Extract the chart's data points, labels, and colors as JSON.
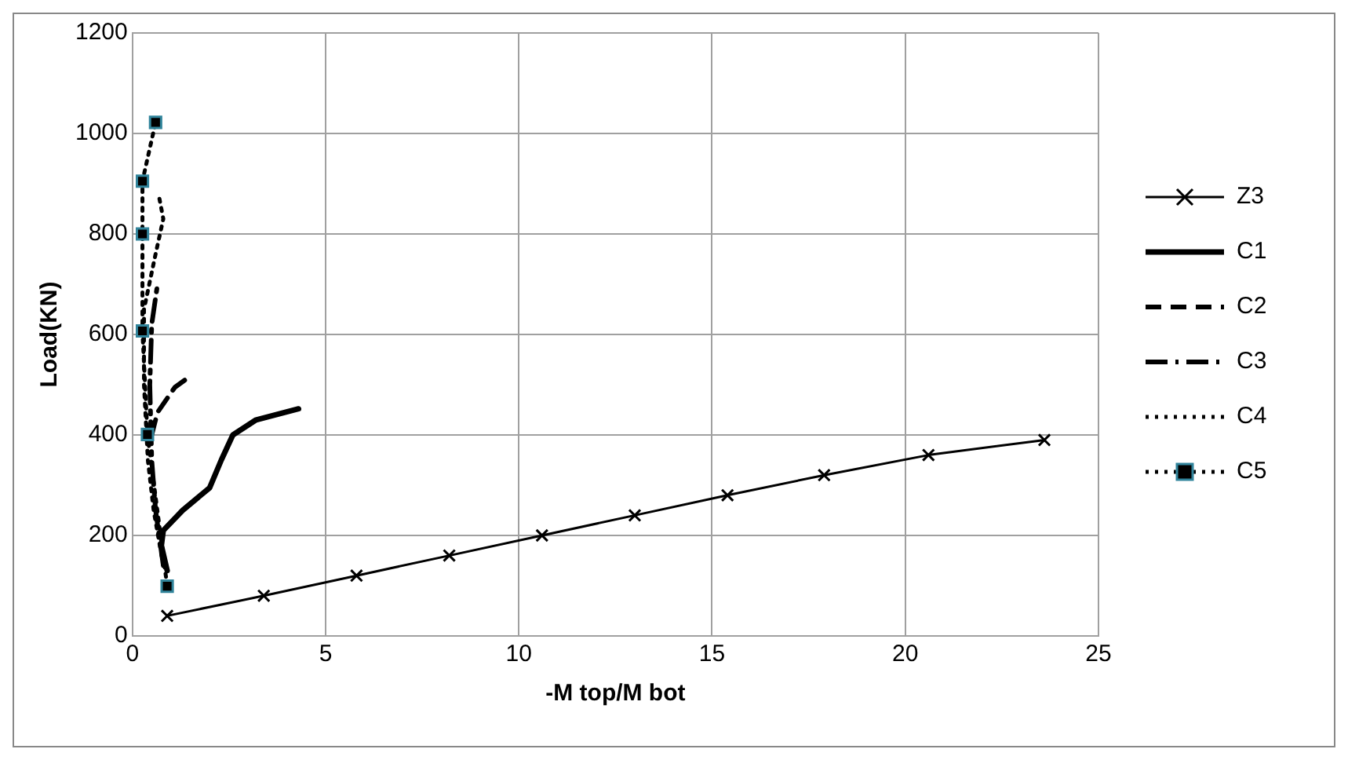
{
  "chart_data": {
    "type": "line",
    "xlabel": "-M top/M bot",
    "ylabel": "Load(KN)",
    "xlim": [
      0,
      25
    ],
    "ylim": [
      0,
      1200
    ],
    "xticks": [
      0,
      5,
      10,
      15,
      20,
      25
    ],
    "yticks": [
      0,
      200,
      400,
      600,
      800,
      1000,
      1200
    ],
    "grid": true,
    "legend": "right",
    "series": [
      {
        "name": "Z3",
        "color": "#000000",
        "marker": "cross",
        "line_style": "solid",
        "x": [
          0.9,
          3.4,
          5.8,
          8.2,
          10.6,
          13,
          15.4,
          17.9,
          20.6,
          23.6
        ],
        "values": [
          40,
          80,
          120,
          160,
          200,
          240,
          280,
          320,
          360,
          390
        ]
      },
      {
        "name": "C1",
        "color": "#000000",
        "marker": "none",
        "line_style": "solid",
        "x": [
          0.9,
          0.75,
          0.8,
          1.3,
          2.0,
          2.3,
          2.6,
          3.2,
          4.3
        ],
        "values": [
          130,
          180,
          210,
          250,
          295,
          350,
          400,
          430,
          452
        ]
      },
      {
        "name": "C2",
        "color": "#000000",
        "marker": "none",
        "line_style": "dashed",
        "x": [
          0.5,
          0.65,
          1.1,
          1.55
        ],
        "values": [
          400,
          445,
          495,
          520
        ]
      },
      {
        "name": "C3",
        "color": "#000000",
        "marker": "none",
        "line_style": "dashdot",
        "x": [
          0.8,
          0.6,
          0.5,
          0.45,
          0.5,
          0.65
        ],
        "values": [
          140,
          250,
          350,
          500,
          620,
          700
        ]
      },
      {
        "name": "C4",
        "color": "#000000",
        "marker": "none",
        "line_style": "dotted",
        "x": [
          0.8,
          0.55,
          0.4,
          0.3,
          0.3,
          0.6,
          0.8,
          0.7
        ],
        "values": [
          140,
          250,
          350,
          500,
          650,
          760,
          830,
          870
        ]
      },
      {
        "name": "C5",
        "color": "#000000",
        "marker": "square",
        "line_style": "dotted",
        "x": [
          0.9,
          0.39,
          0.26,
          0.26,
          0.26,
          0.6
        ],
        "values": [
          99,
          401,
          607,
          800,
          905,
          1022
        ]
      }
    ]
  }
}
